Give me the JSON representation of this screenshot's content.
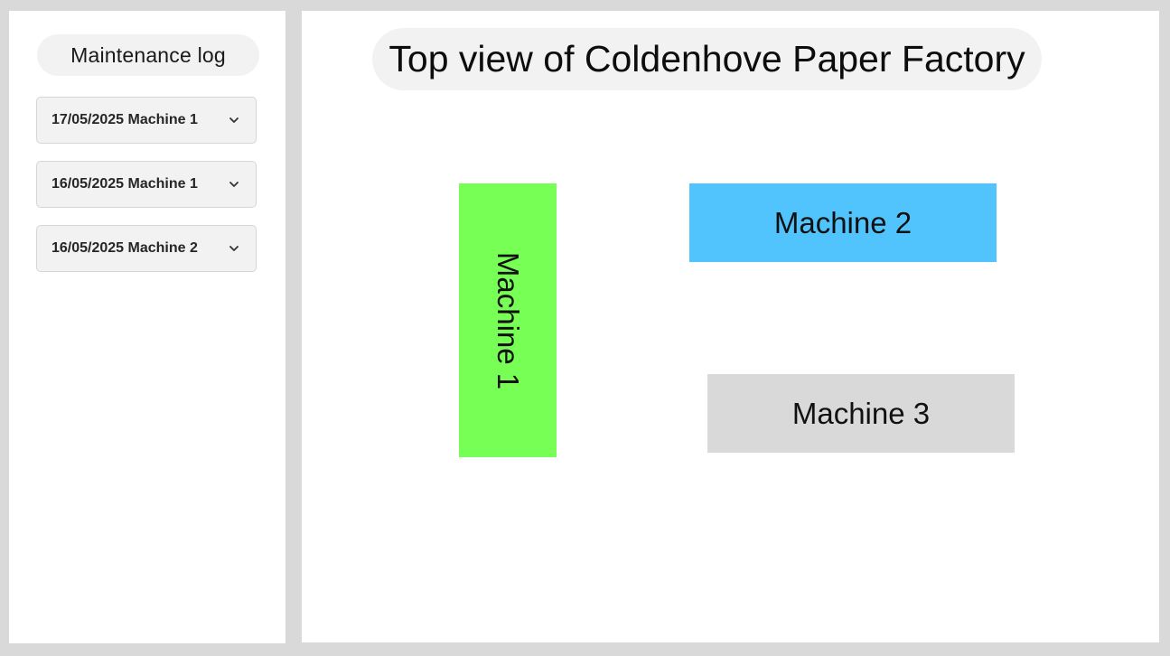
{
  "sidebar": {
    "title": "Maintenance log",
    "entries": [
      {
        "label": "17/05/2025 Machine 1",
        "icon": "chevron-down-icon"
      },
      {
        "label": "16/05/2025 Machine 1",
        "icon": "chevron-down-icon"
      },
      {
        "label": "16/05/2025 Machine 2",
        "icon": "chevron-down-icon"
      }
    ]
  },
  "main": {
    "title": "Top view of Coldenhove Paper Factory",
    "machines": [
      {
        "label": "Machine 1",
        "color": "#77ff55"
      },
      {
        "label": "Machine 2",
        "color": "#51c4fe"
      },
      {
        "label": "Machine 3",
        "color": "#d9d9d9"
      }
    ]
  }
}
